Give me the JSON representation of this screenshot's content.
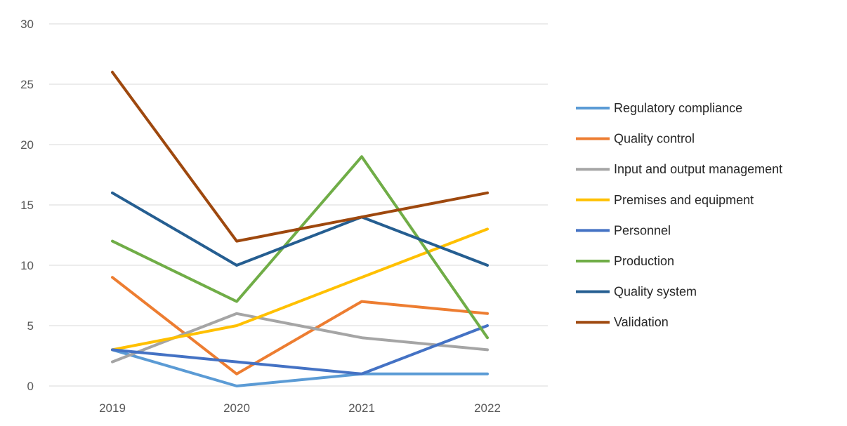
{
  "chart_data": {
    "type": "line",
    "categories": [
      "2019",
      "2020",
      "2021",
      "2022"
    ],
    "ylim": [
      0,
      30
    ],
    "yticks": [
      0,
      5,
      10,
      15,
      20,
      25,
      30
    ],
    "grid": true,
    "legend_position": "right",
    "title": "",
    "xlabel": "",
    "ylabel": "",
    "series": [
      {
        "name": "Regulatory compliance",
        "color": "#5b9bd5",
        "values": [
          3,
          0,
          1,
          1
        ]
      },
      {
        "name": "Quality control",
        "color": "#ed7d31",
        "values": [
          9,
          1,
          7,
          6
        ]
      },
      {
        "name": "Input and output management",
        "color": "#a5a5a5",
        "values": [
          2,
          6,
          4,
          3
        ]
      },
      {
        "name": "Premises and equipment",
        "color": "#ffc000",
        "values": [
          3,
          5,
          9,
          13
        ]
      },
      {
        "name": "Personnel",
        "color": "#4472c4",
        "values": [
          3,
          2,
          1,
          5
        ]
      },
      {
        "name": "Production",
        "color": "#70ad47",
        "values": [
          12,
          7,
          19,
          4
        ]
      },
      {
        "name": "Quality system",
        "color": "#255e91",
        "values": [
          16,
          10,
          14,
          10
        ]
      },
      {
        "name": "Validation",
        "color": "#9e480e",
        "values": [
          26,
          12,
          14,
          16
        ]
      }
    ]
  }
}
